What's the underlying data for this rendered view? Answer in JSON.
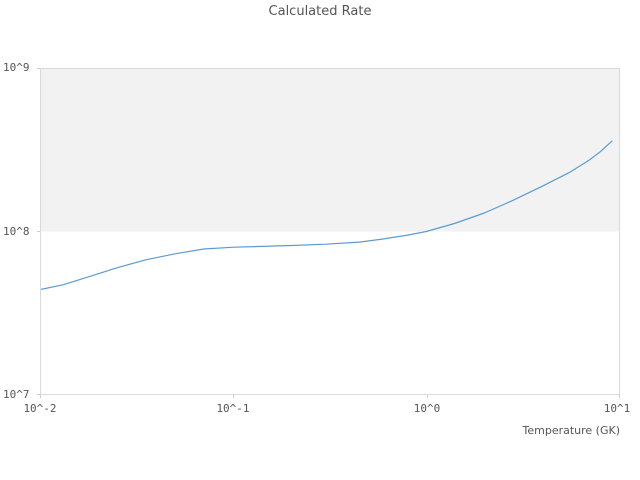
{
  "colors": {
    "line": "#5b9bd5",
    "band_fill": "#f2f2f2",
    "plot_border": "#d9d9d9",
    "text": "#555555"
  },
  "chart_data": {
    "type": "line",
    "title": "Calculated Rate",
    "xlabel": "Temperature (GK)",
    "ylabel": "",
    "x_scale": "log",
    "y_scale": "log",
    "xlim": [
      0.01,
      10
    ],
    "ylim": [
      10000000.0,
      1000000000.0
    ],
    "x_ticks": [
      0.01,
      0.1,
      1,
      10
    ],
    "x_tick_labels": [
      "10^-2",
      "10^-1",
      "10^0",
      "10^1"
    ],
    "y_ticks": [
      10000000.0,
      100000000.0,
      1000000000.0
    ],
    "y_tick_labels": [
      "10^7",
      "10^8",
      "10^9"
    ],
    "grid": false,
    "legend": "none",
    "shaded_band_y": [
      100000000.0,
      1000000000.0
    ],
    "series": [
      {
        "name": "calculated-rate",
        "x": [
          0.01,
          0.013,
          0.018,
          0.025,
          0.035,
          0.05,
          0.07,
          0.1,
          0.14,
          0.2,
          0.3,
          0.45,
          0.6,
          0.8,
          1.0,
          1.4,
          2.0,
          2.8,
          4.0,
          5.5,
          7.0,
          8.0,
          9.2
        ],
        "y": [
          44000000.0,
          47000000.0,
          53000000.0,
          60000000.0,
          67000000.0,
          73000000.0,
          78000000.0,
          80000000.0,
          81000000.0,
          82000000.0,
          83500000.0,
          86000000.0,
          90000000.0,
          95000000.0,
          100000000.0,
          112000000.0,
          130000000.0,
          155000000.0,
          190000000.0,
          230000000.0,
          275000000.0,
          310000000.0,
          360000000.0
        ]
      }
    ]
  }
}
